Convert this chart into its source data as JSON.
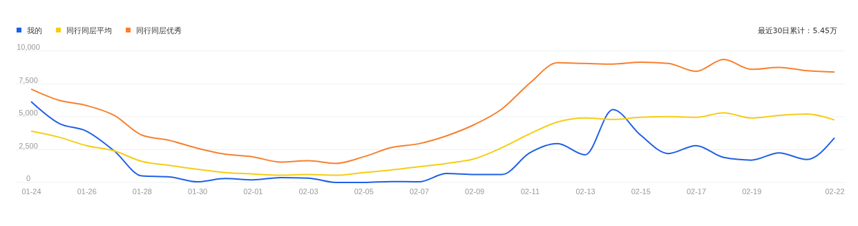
{
  "chart_data": {
    "type": "line",
    "categories": [
      "01-24",
      null,
      "01-26",
      null,
      "01-28",
      null,
      "01-30",
      null,
      "02-01",
      null,
      "02-03",
      null,
      "02-05",
      null,
      "02-07",
      null,
      "02-09",
      null,
      "02-11",
      null,
      "02-13",
      null,
      "02-15",
      null,
      "02-17",
      null,
      "02-19",
      null,
      null,
      "02-22"
    ],
    "series": [
      {
        "name": "我的",
        "color": "#1f5fe6",
        "values": [
          6150,
          4500,
          3900,
          2400,
          500,
          420,
          50,
          300,
          200,
          370,
          330,
          0,
          0,
          70,
          50,
          680,
          600,
          600,
          2250,
          2950,
          2100,
          5550,
          3600,
          2200,
          2800,
          1900,
          1700,
          2250,
          1750,
          3400
        ]
      },
      {
        "name": "同行同层平均",
        "color": "#f5cd14",
        "values": [
          3900,
          3450,
          2800,
          2400,
          1600,
          1300,
          1000,
          750,
          650,
          550,
          600,
          550,
          750,
          950,
          1200,
          1450,
          1800,
          2650,
          3700,
          4600,
          4900,
          4800,
          4950,
          5000,
          4950,
          5300,
          4900,
          5100,
          5200,
          4750
        ]
      },
      {
        "name": "同行同层优秀",
        "color": "#f97f2c",
        "values": [
          7100,
          6250,
          5850,
          5100,
          3600,
          3200,
          2600,
          2150,
          1950,
          1550,
          1650,
          1450,
          1950,
          2650,
          2950,
          3550,
          4400,
          5600,
          7550,
          9100,
          9050,
          9000,
          9150,
          9050,
          8450,
          9350,
          8600,
          8750,
          8500,
          8400
        ]
      }
    ],
    "ylim": [
      0,
      10000
    ],
    "yticks": [
      {
        "value": 0,
        "label": "0"
      },
      {
        "value": 2500,
        "label": "2,500"
      },
      {
        "value": 5000,
        "label": "5,000"
      },
      {
        "value": 7500,
        "label": "7,500"
      },
      {
        "value": 10000,
        "label": "10,000"
      }
    ],
    "grid": "y",
    "legend": "top left",
    "marker": "none",
    "line_style": "solid",
    "annotations": [
      "最近30日累计：5.45万"
    ]
  }
}
